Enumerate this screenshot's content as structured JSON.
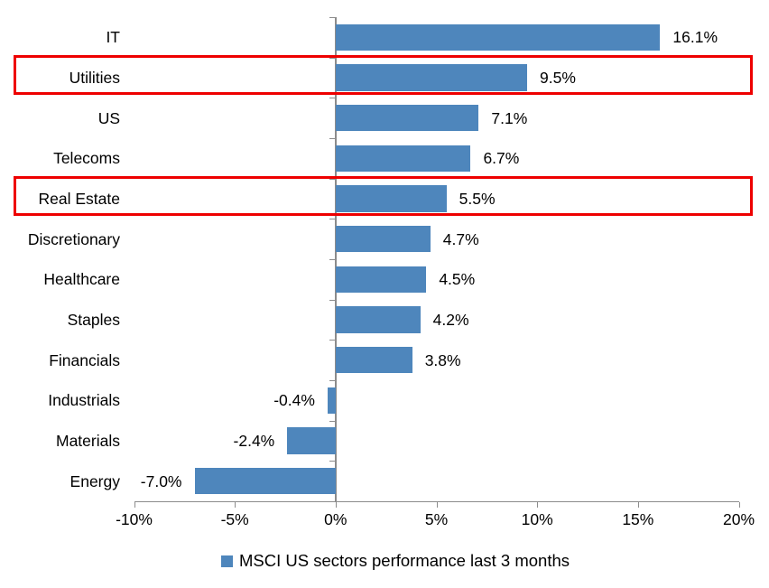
{
  "chart_data": {
    "type": "bar",
    "orientation": "horizontal",
    "title": "",
    "categories": [
      "IT",
      "Utilities",
      "US",
      "Telecoms",
      "Real Estate",
      "Discretionary",
      "Healthcare",
      "Staples",
      "Financials",
      "Industrials",
      "Materials",
      "Energy"
    ],
    "values": [
      16.1,
      9.5,
      7.1,
      6.7,
      5.5,
      4.7,
      4.5,
      4.2,
      3.8,
      -0.4,
      -2.4,
      -7.0
    ],
    "value_labels": [
      "16.1%",
      "9.5%",
      "7.1%",
      "6.7%",
      "5.5%",
      "4.7%",
      "4.5%",
      "4.2%",
      "3.8%",
      "-0.4%",
      "-2.4%",
      "-7.0%"
    ],
    "xlim": [
      -10,
      20
    ],
    "x_tick_values": [
      -10,
      -5,
      0,
      5,
      10,
      15,
      20
    ],
    "x_tick_labels": [
      "-10%",
      "-5%",
      "0%",
      "5%",
      "10%",
      "15%",
      "20%"
    ],
    "grid": false,
    "legend": "MSCI US sectors performance last 3 months",
    "legend_position": "bottom",
    "highlighted_categories": [
      "Utilities",
      "Real Estate"
    ],
    "colors": {
      "bar": "#4e86bc",
      "highlight_box": "#ee0000",
      "axis": "#8c8c8c",
      "text": "#000000"
    }
  }
}
